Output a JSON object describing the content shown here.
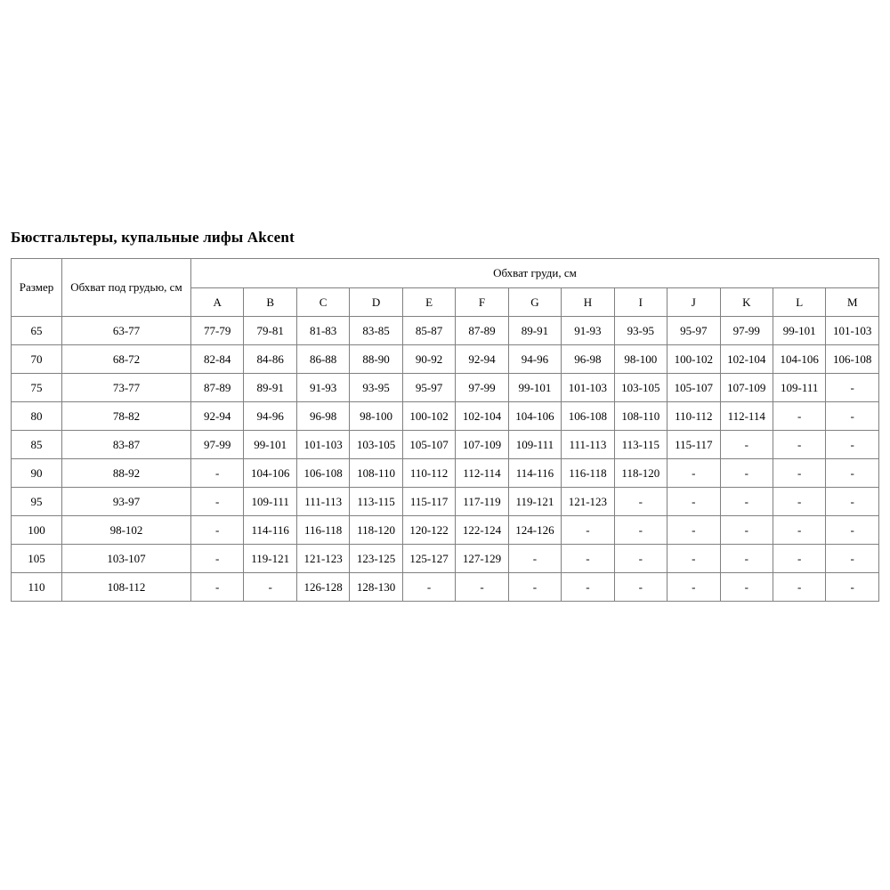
{
  "page": {
    "title": "Бюстгальтеры, купальные лифы Akcent"
  },
  "table": {
    "header": {
      "size": "Размер",
      "underbust": "Обхват под грудью, см",
      "bust_group": "Обхват груди, см",
      "cups": [
        "A",
        "B",
        "C",
        "D",
        "E",
        "F",
        "G",
        "H",
        "I",
        "J",
        "K",
        "L",
        "M"
      ]
    },
    "rows": [
      {
        "size": "65",
        "underbust": "63-77",
        "cups": [
          "77-79",
          "79-81",
          "81-83",
          "83-85",
          "85-87",
          "87-89",
          "89-91",
          "91-93",
          "93-95",
          "95-97",
          "97-99",
          "99-101",
          "101-103"
        ]
      },
      {
        "size": "70",
        "underbust": "68-72",
        "cups": [
          "82-84",
          "84-86",
          "86-88",
          "88-90",
          "90-92",
          "92-94",
          "94-96",
          "96-98",
          "98-100",
          "100-102",
          "102-104",
          "104-106",
          "106-108"
        ]
      },
      {
        "size": "75",
        "underbust": "73-77",
        "cups": [
          "87-89",
          "89-91",
          "91-93",
          "93-95",
          "95-97",
          "97-99",
          "99-101",
          "101-103",
          "103-105",
          "105-107",
          "107-109",
          "109-111",
          "-"
        ]
      },
      {
        "size": "80",
        "underbust": "78-82",
        "cups": [
          "92-94",
          "94-96",
          "96-98",
          "98-100",
          "100-102",
          "102-104",
          "104-106",
          "106-108",
          "108-110",
          "110-112",
          "112-114",
          "-",
          "-"
        ]
      },
      {
        "size": "85",
        "underbust": "83-87",
        "cups": [
          "97-99",
          "99-101",
          "101-103",
          "103-105",
          "105-107",
          "107-109",
          "109-111",
          "111-113",
          "113-115",
          "115-117",
          "-",
          "-",
          "-"
        ]
      },
      {
        "size": "90",
        "underbust": "88-92",
        "cups": [
          "-",
          "104-106",
          "106-108",
          "108-110",
          "110-112",
          "112-114",
          "114-116",
          "116-118",
          "118-120",
          "-",
          "-",
          "-",
          "-"
        ]
      },
      {
        "size": "95",
        "underbust": "93-97",
        "cups": [
          "-",
          "109-111",
          "111-113",
          "113-115",
          "115-117",
          "117-119",
          "119-121",
          "121-123",
          "-",
          "-",
          "-",
          "-",
          "-"
        ]
      },
      {
        "size": "100",
        "underbust": "98-102",
        "cups": [
          "-",
          "114-116",
          "116-118",
          "118-120",
          "120-122",
          "122-124",
          "124-126",
          "-",
          "-",
          "-",
          "-",
          "-",
          "-"
        ]
      },
      {
        "size": "105",
        "underbust": "103-107",
        "cups": [
          "-",
          "119-121",
          "121-123",
          "123-125",
          "125-127",
          "127-129",
          "-",
          "-",
          "-",
          "-",
          "-",
          "-",
          "-"
        ]
      },
      {
        "size": "110",
        "underbust": "108-112",
        "cups": [
          "-",
          "-",
          "126-128",
          "128-130",
          "-",
          "-",
          "-",
          "-",
          "-",
          "-",
          "-",
          "-",
          "-"
        ]
      }
    ]
  },
  "colors": {
    "table_border": "#808080",
    "text": "#000000",
    "background": "#ffffff"
  }
}
